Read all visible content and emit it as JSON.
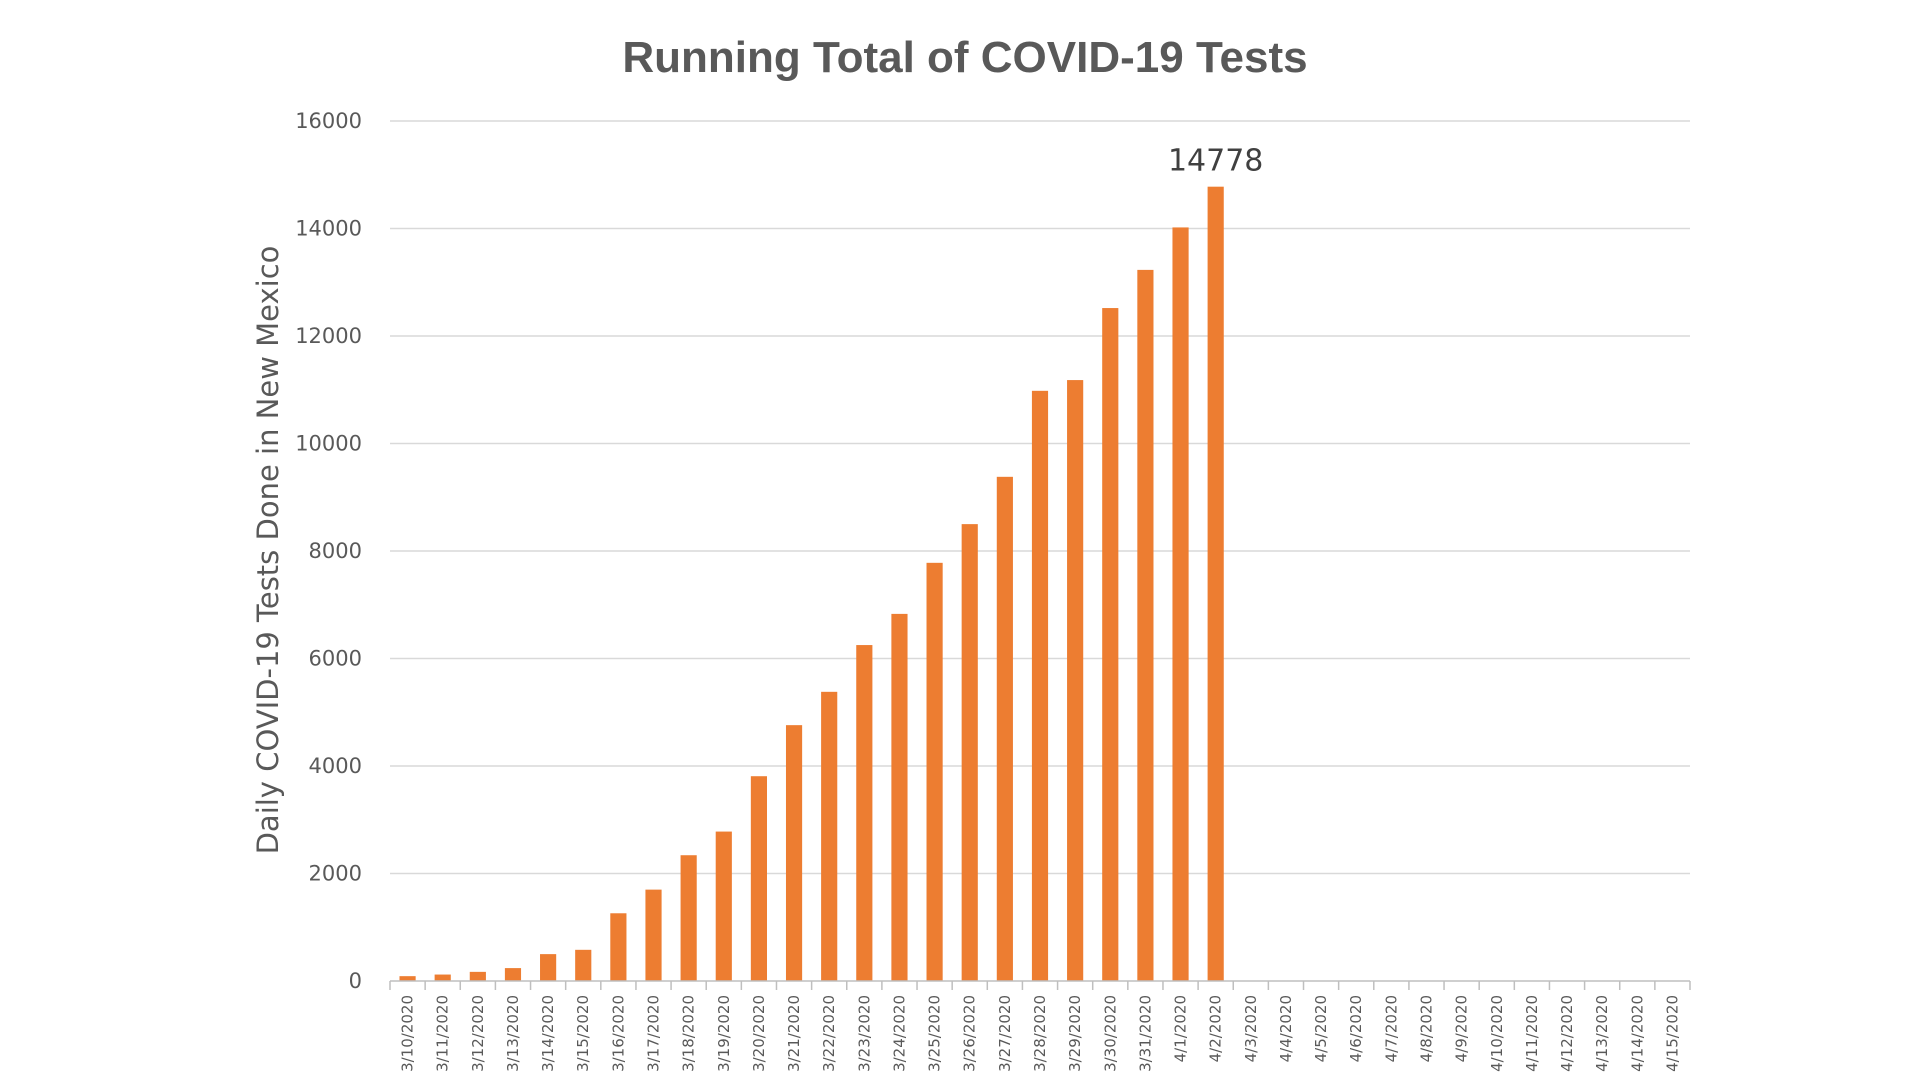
{
  "chart_data": {
    "type": "bar",
    "title": "Running Total of COVID-19 Tests",
    "ylabel": "Daily COVID-19 Tests Done in New Mexico",
    "xlabel": "",
    "ylim": [
      0,
      16000
    ],
    "yticks": [
      0,
      2000,
      4000,
      6000,
      8000,
      10000,
      12000,
      14000,
      16000
    ],
    "grid": true,
    "legend": "none",
    "bar_color": "#ED7D31",
    "categories": [
      "3/10/2020",
      "3/11/2020",
      "3/12/2020",
      "3/13/2020",
      "3/14/2020",
      "3/15/2020",
      "3/16/2020",
      "3/17/2020",
      "3/18/2020",
      "3/19/2020",
      "3/20/2020",
      "3/21/2020",
      "3/22/2020",
      "3/23/2020",
      "3/24/2020",
      "3/25/2020",
      "3/26/2020",
      "3/27/2020",
      "3/28/2020",
      "3/29/2020",
      "3/30/2020",
      "3/31/2020",
      "4/1/2020",
      "4/2/2020",
      "4/3/2020",
      "4/4/2020",
      "4/5/2020",
      "4/6/2020",
      "4/7/2020",
      "4/8/2020",
      "4/9/2020",
      "4/10/2020",
      "4/11/2020",
      "4/12/2020",
      "4/13/2020",
      "4/14/2020",
      "4/15/2020"
    ],
    "values": [
      90,
      120,
      170,
      240,
      500,
      580,
      1260,
      1700,
      2340,
      2780,
      3810,
      4760,
      5380,
      6250,
      6830,
      7780,
      8500,
      9380,
      10980,
      11180,
      12520,
      13230,
      14020,
      14778,
      null,
      null,
      null,
      null,
      null,
      null,
      null,
      null,
      null,
      null,
      null,
      null,
      null
    ],
    "annotations": [
      {
        "category": "4/2/2020",
        "text": "14778"
      }
    ]
  }
}
